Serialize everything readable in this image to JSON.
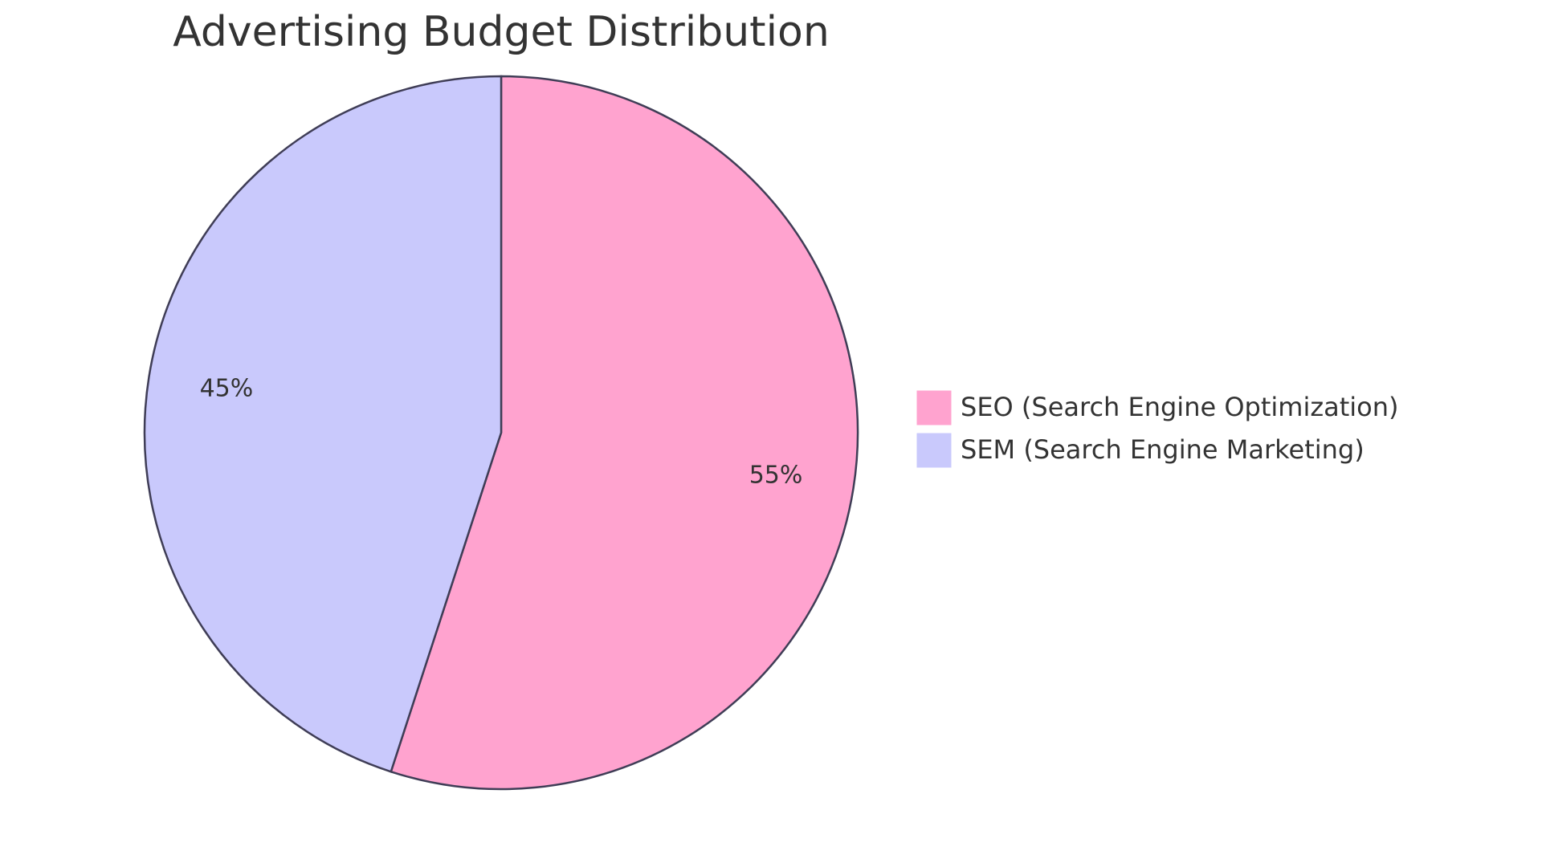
{
  "chart_data": {
    "type": "pie",
    "title": "Advertising Budget Distribution",
    "categories": [
      "SEO (Search Engine Optimization)",
      "SEM (Search Engine Marketing)"
    ],
    "values": [
      55,
      45
    ],
    "value_labels": [
      "55%",
      "45%"
    ],
    "colors": [
      "#ffa3cf",
      "#c9c9fc"
    ]
  }
}
